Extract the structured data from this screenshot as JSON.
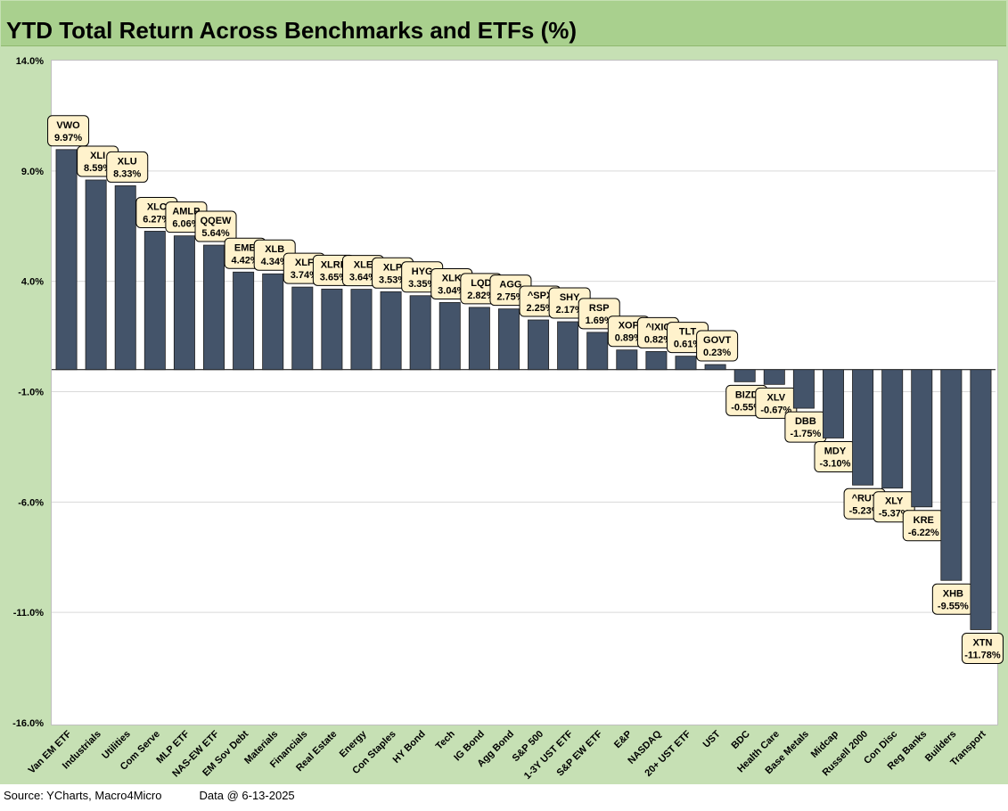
{
  "title": "YTD Total Return Across Benchmarks and ETFs (%)",
  "footer": {
    "source": "Source: YCharts, Macro4Micro",
    "data_date": "Data @ 6-13-2025"
  },
  "colors": {
    "bar": "#44546a",
    "label_fill": "#fff2cc",
    "frame": "#c6e0b4",
    "title_bar": "#a9d08e",
    "grid": "#d9d9d9"
  },
  "chart_data": {
    "type": "bar",
    "title": "YTD Total Return Across Benchmarks and ETFs (%)",
    "xlabel": "",
    "ylabel": "",
    "ylim": [
      -16,
      14
    ],
    "yticks": [
      "14.0%",
      "9.0%",
      "4.0%",
      "-1.0%",
      "-6.0%",
      "-11.0%",
      "-16.0%"
    ],
    "ytick_values": [
      14,
      9,
      4,
      -1,
      -6,
      -11,
      -16
    ],
    "grid": true,
    "categories": [
      "Van EM ETF",
      "Industrials",
      "Utilities",
      "Com Serve",
      "MLP ETF",
      "NAS-EW ETF",
      "EM Sov Debt",
      "Materials",
      "Financials",
      "Real Estate",
      "Energy",
      "Con Staples",
      "HY Bond",
      "Tech",
      "IG Bond",
      "Agg Bond",
      "S&P 500",
      "1-3Y UST ETF",
      "S&P EW ETF",
      "E&P",
      "NASDAQ",
      "20+ UST ETF",
      "UST",
      "BDC",
      "Health Care",
      "Base Metals",
      "Midcap",
      "Russell 2000",
      "Con Disc",
      "Reg Banks",
      "Builders",
      "Transport"
    ],
    "tickers": [
      "VWO",
      "XLI",
      "XLU",
      "XLC",
      "AMLP",
      "QQEW",
      "EMB",
      "XLB",
      "XLF",
      "XLRE",
      "XLE",
      "XLP",
      "HYG",
      "XLK",
      "LQD",
      "AGG",
      "^SPX",
      "SHY",
      "RSP",
      "XOP",
      "^IXIC",
      "TLT",
      "GOVT",
      "BIZD",
      "XLV",
      "DBB",
      "MDY",
      "^RUT",
      "XLY",
      "KRE",
      "XHB",
      "XTN"
    ],
    "values": [
      9.97,
      8.59,
      8.33,
      6.27,
      6.06,
      5.64,
      4.42,
      4.34,
      3.74,
      3.65,
      3.64,
      3.53,
      3.35,
      3.04,
      2.82,
      2.75,
      2.25,
      2.17,
      1.69,
      0.89,
      0.82,
      0.61,
      0.23,
      -0.55,
      -0.67,
      -1.75,
      -3.1,
      -5.23,
      -5.37,
      -6.22,
      -9.55,
      -11.78
    ],
    "value_labels": [
      "9.97%",
      "8.59%",
      "8.33%",
      "6.27%",
      "6.06%",
      "5.64%",
      "4.42%",
      "4.34%",
      "3.74%",
      "3.65%",
      "3.64%",
      "3.53%",
      "3.35%",
      "3.04%",
      "2.82%",
      "2.75%",
      "2.25%",
      "2.17%",
      "1.69%",
      "0.89%",
      "0.82%",
      "0.61%",
      "0.23%",
      "-0.55%",
      "-0.67%",
      "-1.75%",
      "-3.10%",
      "-5.23%",
      "-5.37%",
      "-6.22%",
      "-9.55%",
      "-11.78%"
    ]
  }
}
